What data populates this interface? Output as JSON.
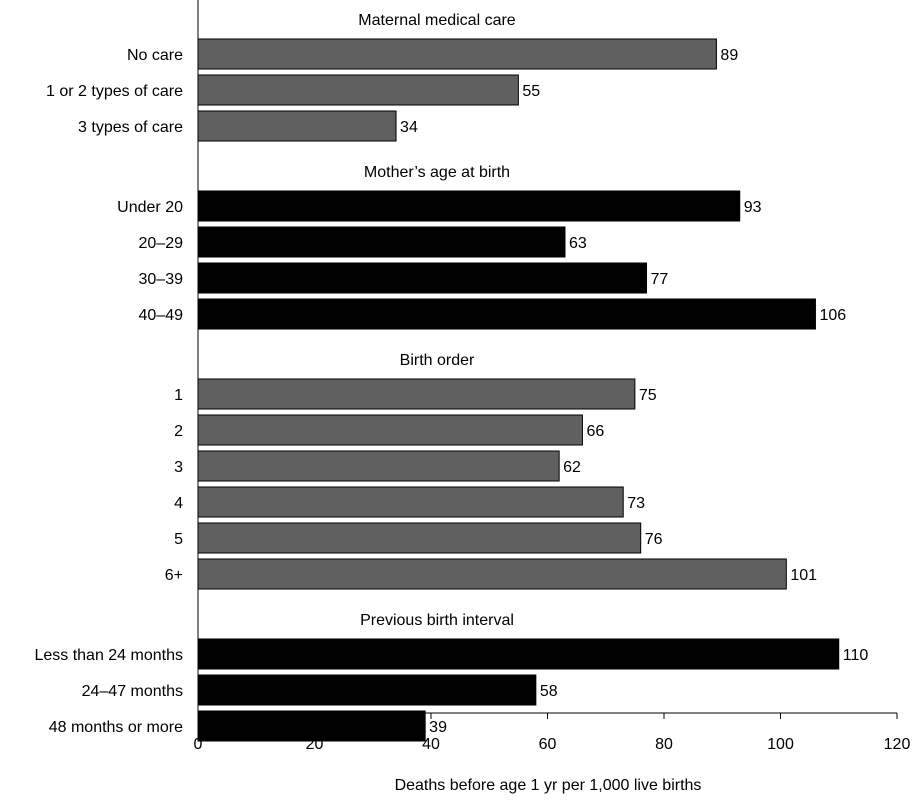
{
  "chart_data": {
    "type": "bar",
    "orientation": "horizontal",
    "xlabel": "Deaths before age 1 yr per 1,000 live births",
    "xlim": [
      0,
      120
    ],
    "xticks": [
      0,
      20,
      40,
      60,
      80,
      100,
      120
    ],
    "grid": false,
    "legend": "none",
    "groups": [
      {
        "title": "Maternal medical care",
        "color": "#606060",
        "categories": [
          "No care",
          "1 or 2 types of care",
          "3 types of care"
        ],
        "values": [
          89,
          55,
          34
        ]
      },
      {
        "title": "Mother’s age at birth",
        "color": "#000000",
        "categories": [
          "Under 20",
          "20–29",
          "30–39",
          "40–49"
        ],
        "values": [
          93,
          63,
          77,
          106
        ]
      },
      {
        "title": "Birth order",
        "color": "#606060",
        "categories": [
          "1",
          "2",
          "3",
          "4",
          "5",
          "6+"
        ],
        "values": [
          75,
          66,
          62,
          73,
          76,
          101
        ]
      },
      {
        "title": "Previous birth interval",
        "color": "#000000",
        "categories": [
          "Less than 24 months",
          "24–47 months",
          "48 months or more"
        ],
        "values": [
          110,
          58,
          39
        ]
      }
    ]
  }
}
